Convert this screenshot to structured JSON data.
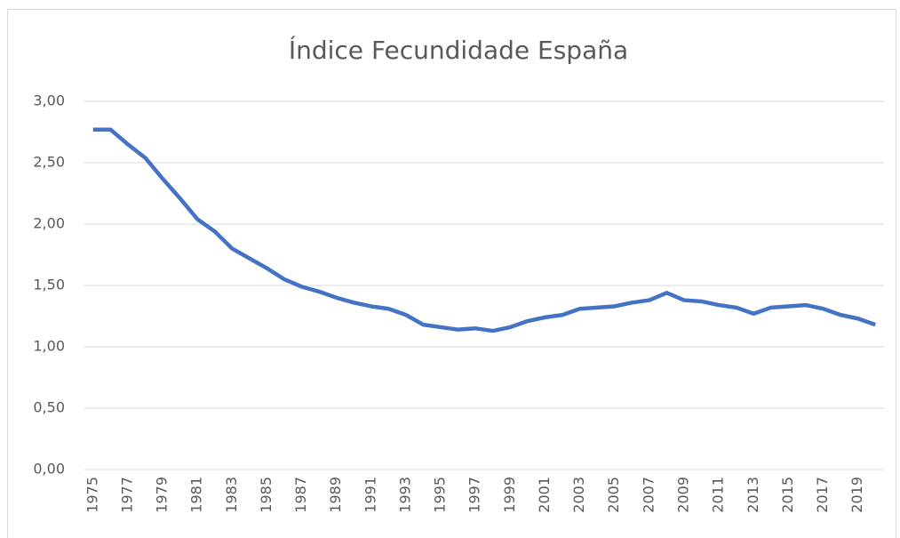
{
  "chart_data": {
    "type": "line",
    "title": "Índice Fecundidade España",
    "categories": [
      "1975",
      null,
      "1977",
      null,
      "1979",
      null,
      "1981",
      null,
      "1983",
      null,
      "1985",
      null,
      "1987",
      null,
      "1989",
      null,
      "1991",
      null,
      "1993",
      null,
      "1995",
      null,
      "1997",
      null,
      "1999",
      null,
      "2001",
      null,
      "2003",
      null,
      "2005",
      null,
      "2007",
      null,
      "2009",
      null,
      "2011",
      null,
      "2013",
      null,
      "2015",
      null,
      "2017",
      null,
      "2019",
      null
    ],
    "series": [
      {
        "name": "Índice Fecundidade",
        "color": "#4472c4",
        "values": [
          2.77,
          2.77,
          2.65,
          2.54,
          2.37,
          2.21,
          2.04,
          1.94,
          1.8,
          1.72,
          1.64,
          1.55,
          1.49,
          1.45,
          1.4,
          1.36,
          1.33,
          1.31,
          1.26,
          1.18,
          1.16,
          1.14,
          1.15,
          1.13,
          1.16,
          1.21,
          1.24,
          1.26,
          1.31,
          1.32,
          1.33,
          1.36,
          1.38,
          1.44,
          1.38,
          1.37,
          1.34,
          1.32,
          1.27,
          1.32,
          1.33,
          1.34,
          1.31,
          1.26,
          1.23,
          1.18
        ]
      }
    ],
    "ylim": [
      0,
      3
    ],
    "yticks": [
      {
        "value": 0,
        "label": "0,00"
      },
      {
        "value": 0.5,
        "label": "0,50"
      },
      {
        "value": 1,
        "label": "1,00"
      },
      {
        "value": 1.5,
        "label": "1,50"
      },
      {
        "value": 2,
        "label": "2,00"
      },
      {
        "value": 2.5,
        "label": "2,50"
      },
      {
        "value": 3,
        "label": "3,00"
      }
    ],
    "grid": true
  }
}
